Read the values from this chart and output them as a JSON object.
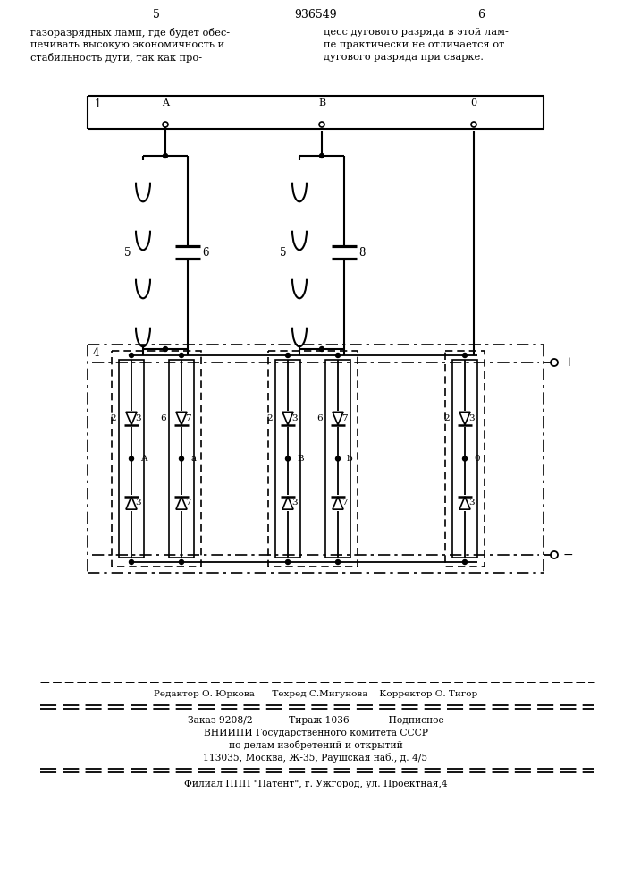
{
  "page_number_left": "5",
  "patent_number": "936549",
  "page_number_right": "6",
  "text_left_lines": [
    "газоразрядных ламп, где будет обес-",
    "печивать высокую экономичность и",
    "стабильность дуги, так как про-"
  ],
  "text_right_lines": [
    "цесс дугового разряда в этой лам-",
    "пе практически не отличается от",
    "дугового разряда при сварке."
  ],
  "editor_line": "Редактор О. Юркова      Техред С.Мигунова    Корректор О. Тигор",
  "order_line": "Заказ 9208/2            Тираж 1036             Подписное",
  "vniipi_line1": "ВНИИПИ Государственного комитета СССР",
  "vniipi_line2": "по делам изобретений и открытий",
  "vniipi_line3": "113035, Москва, Ж-35, Раушская наб., д. 4/5",
  "filial_line": "Филиал ППП \"Патент\", г. Ужгород, ул. Проектная,4",
  "bg_color": "#ffffff"
}
